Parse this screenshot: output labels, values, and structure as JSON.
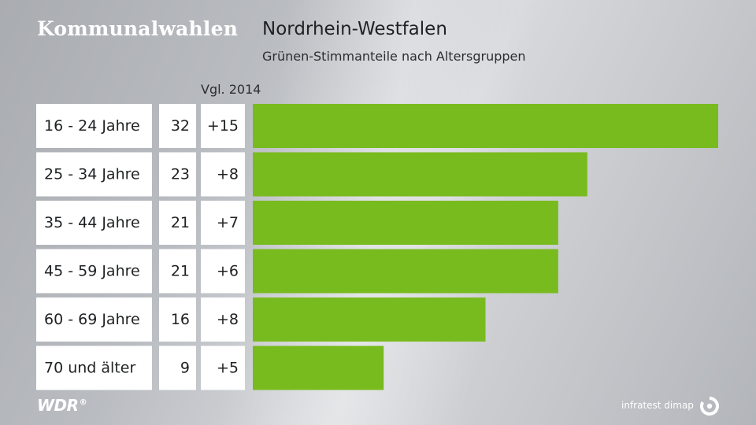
{
  "header": {
    "topic": "Kommunalwahlen",
    "title": "Nordrhein-Westfalen",
    "subtitle": "Grünen-Stimmanteile nach Altersgruppen",
    "compare_label": "Vgl. 2014"
  },
  "footer": {
    "broadcaster": "WDR",
    "registered": "®",
    "source": "infratest dimap",
    "source_icon": "infratest-dimap-logo-icon"
  },
  "colors": {
    "bar": "#78bb1e",
    "cell": "#ffffff",
    "text": "#1f2123"
  },
  "chart_data": {
    "type": "bar",
    "orientation": "horizontal",
    "categories": [
      "16 - 24 Jahre",
      "25 - 34 Jahre",
      "35 - 44 Jahre",
      "45 - 59 Jahre",
      "60 - 69 Jahre",
      "70 und älter"
    ],
    "values": [
      32,
      23,
      21,
      21,
      16,
      9
    ],
    "value_labels": [
      "32",
      "23",
      "21",
      "21",
      "16",
      "9"
    ],
    "change_vs_2014": [
      "+15",
      "+8",
      "+7",
      "+6",
      "+8",
      "+5"
    ],
    "title": "Nordrhein-Westfalen",
    "subtitle": "Grünen-Stimmanteile nach Altersgruppen",
    "xlim": [
      0,
      32
    ],
    "grid": false
  }
}
